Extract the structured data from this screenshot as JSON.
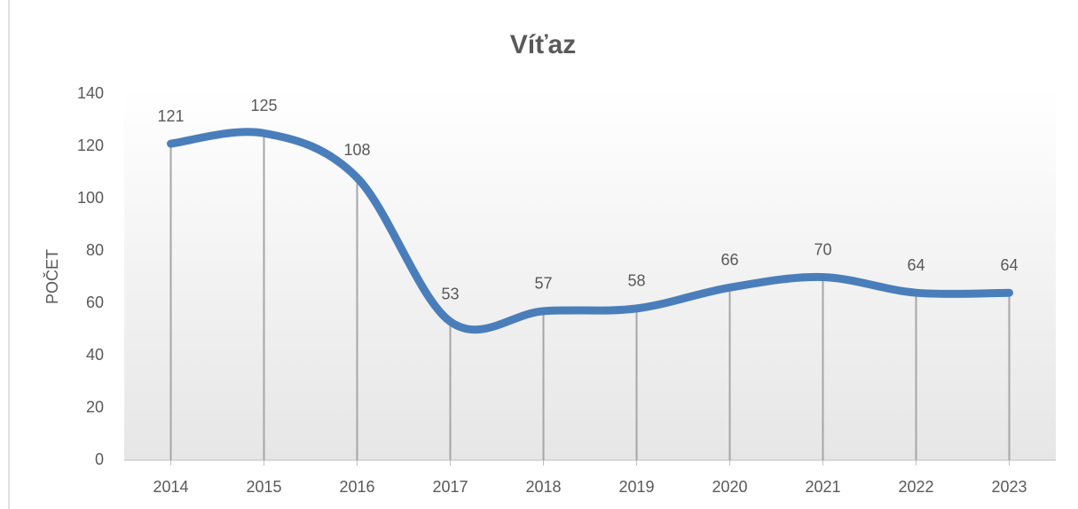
{
  "chart_data": {
    "type": "line",
    "title": "Víťaz",
    "y_label": "POČET",
    "categories": [
      "2014",
      "2015",
      "2016",
      "2017",
      "2018",
      "2019",
      "2020",
      "2021",
      "2022",
      "2023"
    ],
    "values": [
      121,
      125,
      108,
      53,
      57,
      58,
      66,
      70,
      64,
      64
    ],
    "color": "#4a7ebb",
    "smooth": true,
    "drop_lines": true,
    "ylim": [
      0,
      140
    ],
    "yticks": [
      0,
      20,
      40,
      60,
      80,
      100,
      120,
      140
    ],
    "grid": false
  }
}
